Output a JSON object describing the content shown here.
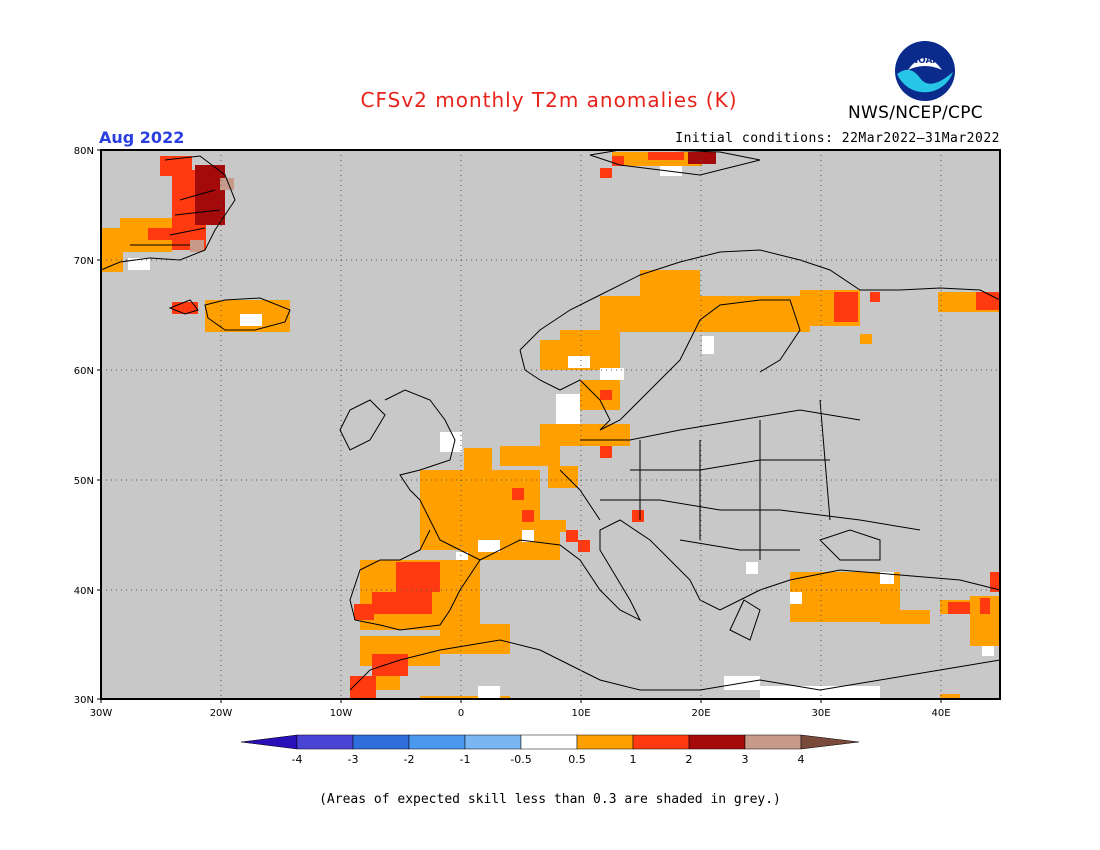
{
  "header": {
    "title": "CFSv2 monthly T2m anomalies (K)",
    "month": "Aug 2022",
    "initial_conditions": "Initial conditions: 22Mar2022–31Mar2022",
    "agency": "NWS/NCEP/CPC",
    "logo_text": "NOAA"
  },
  "map": {
    "extent": {
      "lon": [
        -30,
        45
      ],
      "lat": [
        30,
        80
      ]
    },
    "lat_labels": [
      "30N",
      "40N",
      "50N",
      "60N",
      "70N",
      "80N"
    ],
    "lon_labels": [
      "30W",
      "20W",
      "10W",
      "0",
      "10E",
      "20E",
      "30E",
      "40E"
    ],
    "background_color": "#c8c8c8"
  },
  "colorbar": {
    "labels": [
      "-4",
      "-3",
      "-2",
      "-1",
      "-0.5",
      "0.5",
      "1",
      "2",
      "3",
      "4"
    ],
    "colors": [
      "#2a10b8",
      "#4a44d6",
      "#2f6fdc",
      "#4a99ee",
      "#7ab6f2",
      "#ffffff",
      "#ffa000",
      "#ff3a10",
      "#a50a0a",
      "#c89a8a",
      "#7a4a3a"
    ]
  },
  "footnote": "(Areas of expected skill less than 0.3 are shaded in grey.)"
}
